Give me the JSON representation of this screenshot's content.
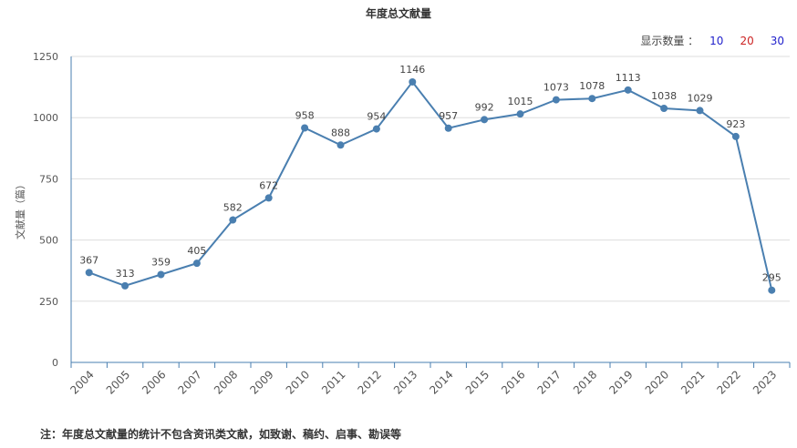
{
  "page": {
    "note": "注：年度总文献量的统计不包含资讯类文献，如致谢、稿约、启事、勘误等"
  },
  "controls": {
    "display_label": "显示数量 ：",
    "options": [
      {
        "label": "10",
        "color": "#2222cc"
      },
      {
        "label": "20",
        "color": "#cc2222"
      },
      {
        "label": "30",
        "color": "#2222cc"
      }
    ]
  },
  "chart_data": {
    "type": "line",
    "title": "年度总文献量",
    "ylabel": "文献量（篇）",
    "xlabel": "",
    "ylim": [
      0,
      1250
    ],
    "yticks": [
      0,
      250,
      500,
      750,
      1000,
      1250
    ],
    "grid": true,
    "line_color": "#4a7fb0",
    "categories": [
      "2004",
      "2005",
      "2006",
      "2007",
      "2008",
      "2009",
      "2010",
      "2011",
      "2012",
      "2013",
      "2014",
      "2015",
      "2016",
      "2017",
      "2018",
      "2019",
      "2020",
      "2021",
      "2022",
      "2023"
    ],
    "values": [
      367,
      313,
      359,
      405,
      582,
      672,
      958,
      888,
      954,
      1146,
      957,
      992,
      1015,
      1073,
      1078,
      1113,
      1038,
      1029,
      923,
      295
    ]
  }
}
